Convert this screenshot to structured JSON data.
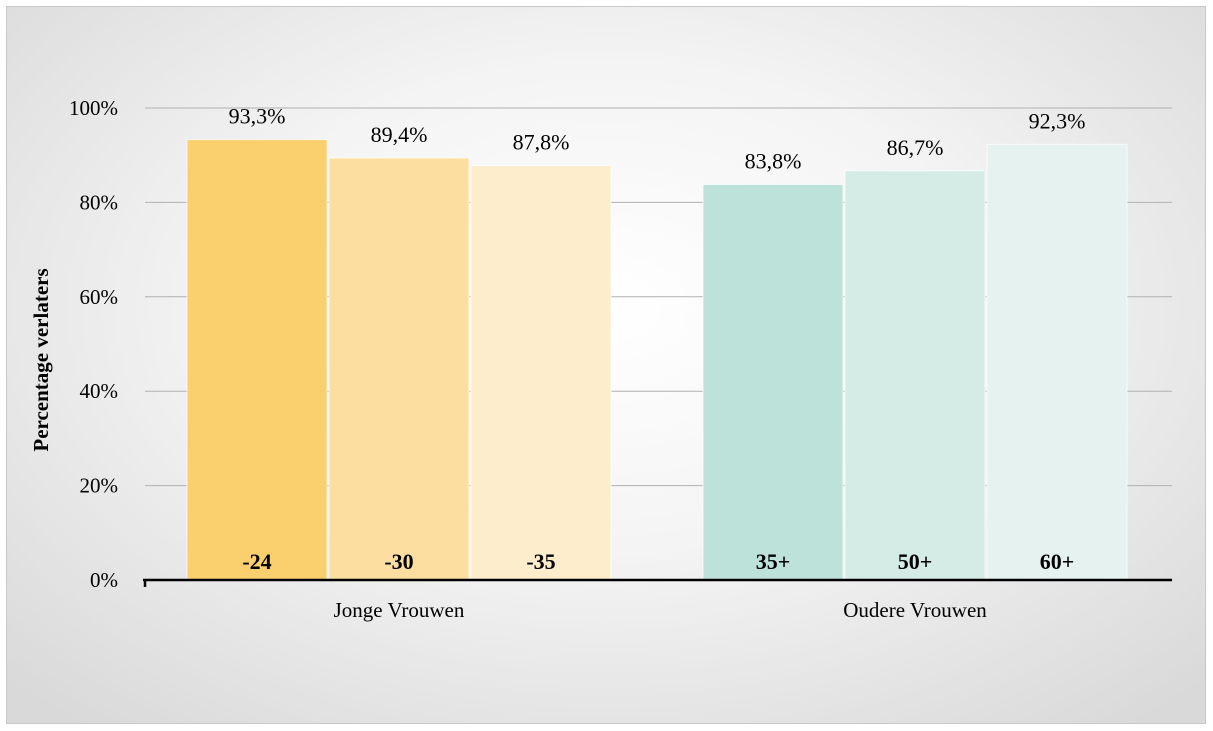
{
  "chart_data": {
    "type": "bar",
    "title": "",
    "xlabel": "",
    "ylabel": "Percentage verlaters",
    "ylim": [
      0,
      100
    ],
    "yticks": [
      "0%",
      "20%",
      "40%",
      "60%",
      "80%",
      "100%"
    ],
    "grid": true,
    "groups": [
      {
        "name": "Jonge Vrouwen",
        "bars": [
          {
            "category": "-24",
            "value": 93.3,
            "label": "93,3%",
            "color": "#FAD06F"
          },
          {
            "category": "-30",
            "value": 89.4,
            "label": "89,4%",
            "color": "#FCDFA0"
          },
          {
            "category": "-35",
            "value": 87.8,
            "label": "87,8%",
            "color": "#FDEDCD"
          }
        ]
      },
      {
        "name": "Oudere Vrouwen",
        "bars": [
          {
            "category": "35+",
            "value": 83.8,
            "label": "83,8%",
            "color": "#BDE2DA"
          },
          {
            "category": "50+",
            "value": 86.7,
            "label": "86,7%",
            "color": "#D5EBE6"
          },
          {
            "category": "60+",
            "value": 92.3,
            "label": "92,3%",
            "color": "#E6F2F0"
          }
        ]
      }
    ]
  }
}
